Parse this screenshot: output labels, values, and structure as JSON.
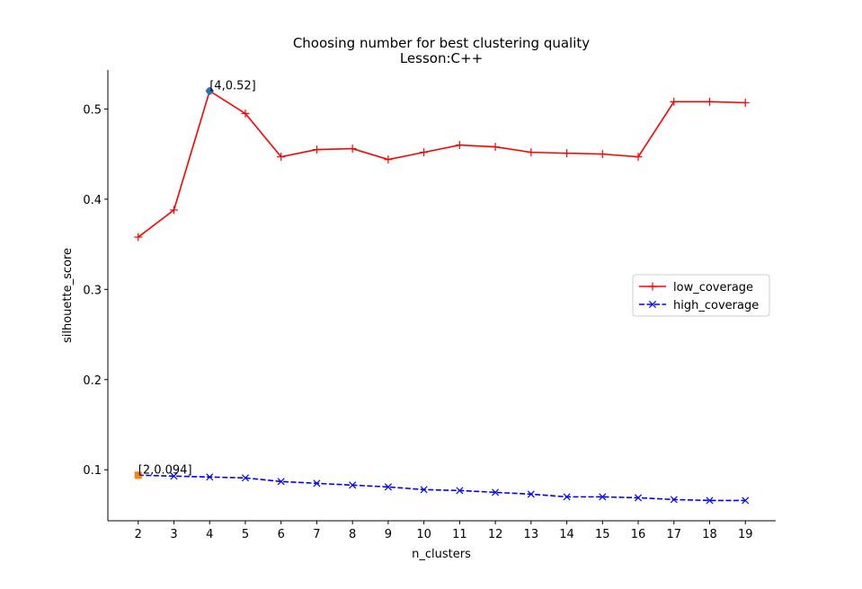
{
  "chart_data": {
    "type": "line",
    "title": "Choosing number for best clustering quality",
    "subtitle": "Lesson:C++",
    "xlabel": "n_clusters",
    "ylabel": "silhouette_score",
    "x": [
      2,
      3,
      4,
      5,
      6,
      7,
      8,
      9,
      10,
      11,
      12,
      13,
      14,
      15,
      16,
      17,
      18,
      19
    ],
    "x_tick_labels": [
      "2",
      "3",
      "4",
      "5",
      "6",
      "7",
      "8",
      "9",
      "10",
      "11",
      "12",
      "13",
      "14",
      "15",
      "16",
      "17",
      "18",
      "19"
    ],
    "y_ticks": [
      0.1,
      0.2,
      0.3,
      0.4,
      0.5
    ],
    "y_tick_labels": [
      "0.1",
      "0.2",
      "0.3",
      "0.4",
      "0.5"
    ],
    "xlim": [
      1.15,
      19.85
    ],
    "ylim": [
      0.0435,
      0.5432
    ],
    "grid": false,
    "legend_position": "center-right",
    "series": [
      {
        "name": "low_coverage",
        "color": "#ff0000",
        "linestyle": "solid",
        "marker": "plus",
        "values": [
          0.358,
          0.388,
          0.52,
          0.495,
          0.447,
          0.455,
          0.456,
          0.444,
          0.452,
          0.46,
          0.458,
          0.452,
          0.451,
          0.45,
          0.447,
          0.508,
          0.508,
          0.507
        ]
      },
      {
        "name": "high_coverage",
        "color": "#0000ff",
        "linestyle": "dashed",
        "marker": "x",
        "values": [
          0.094,
          0.093,
          0.092,
          0.091,
          0.087,
          0.085,
          0.083,
          0.081,
          0.078,
          0.077,
          0.075,
          0.073,
          0.07,
          0.07,
          0.069,
          0.067,
          0.066,
          0.066
        ]
      }
    ],
    "annotations": [
      {
        "x": 4,
        "y": 0.52,
        "text": "[4,0.52]",
        "marker": "circle",
        "color": "#1f77b4"
      },
      {
        "x": 2,
        "y": 0.094,
        "text": "[2,0.094]",
        "marker": "square",
        "color": "#ff7f0e"
      }
    ]
  }
}
